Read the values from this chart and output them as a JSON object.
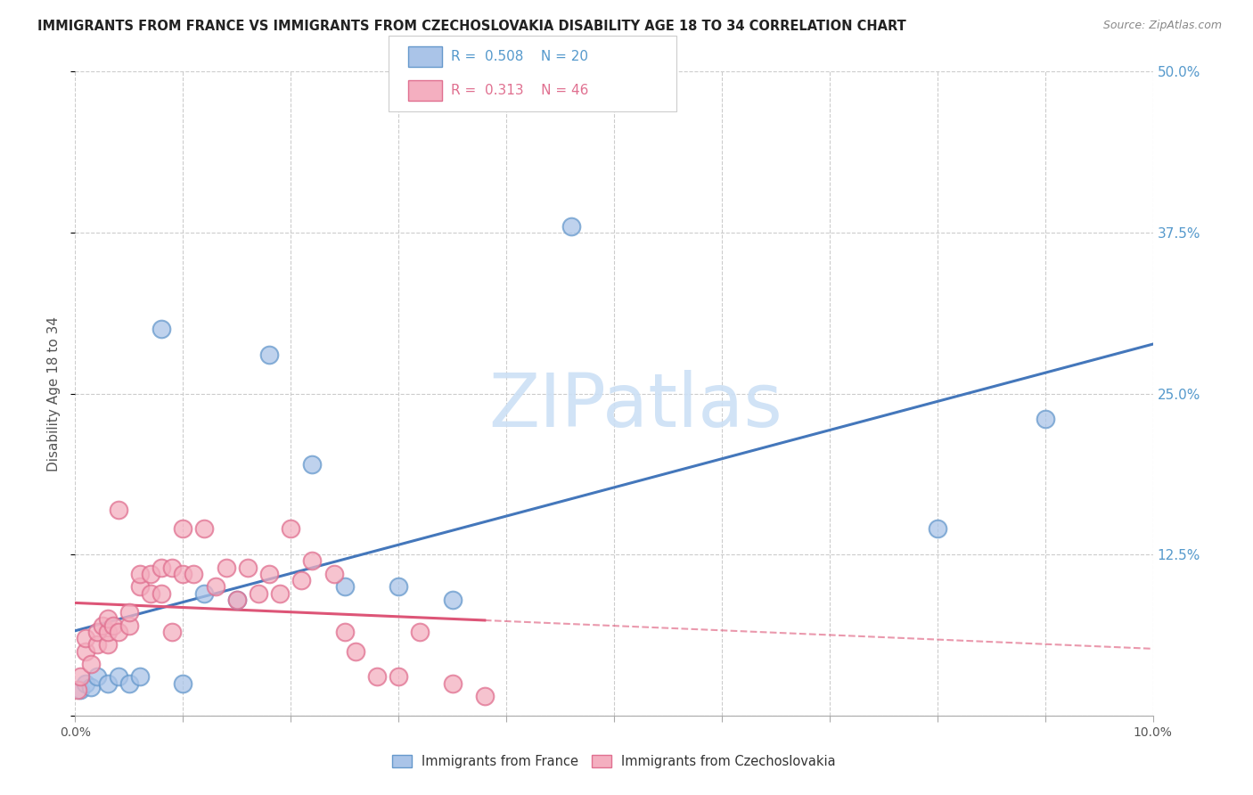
{
  "title": "IMMIGRANTS FROM FRANCE VS IMMIGRANTS FROM CZECHOSLOVAKIA DISABILITY AGE 18 TO 34 CORRELATION CHART",
  "source": "Source: ZipAtlas.com",
  "ylabel": "Disability Age 18 to 34",
  "xlim": [
    0.0,
    0.1
  ],
  "ylim": [
    0.0,
    0.5
  ],
  "yticks": [
    0.0,
    0.125,
    0.25,
    0.375,
    0.5
  ],
  "yticklabels": [
    "",
    "12.5%",
    "25.0%",
    "37.5%",
    "50.0%"
  ],
  "xticks": [
    0.0,
    0.01,
    0.02,
    0.03,
    0.04,
    0.05,
    0.06,
    0.07,
    0.08,
    0.09,
    0.1
  ],
  "xticklabels": [
    "0.0%",
    "",
    "",
    "",
    "",
    "",
    "",
    "",
    "",
    "",
    "10.0%"
  ],
  "R_france": 0.508,
  "N_france": 20,
  "R_czech": 0.313,
  "N_czech": 46,
  "color_france": "#aac4e8",
  "color_czech": "#f4afc0",
  "edge_france": "#6699cc",
  "edge_czech": "#e07090",
  "line_france": "#4477bb",
  "line_czech": "#dd5577",
  "watermark_color": "#cce0f5",
  "france_x": [
    0.0005,
    0.001,
    0.0015,
    0.002,
    0.003,
    0.004,
    0.005,
    0.006,
    0.008,
    0.01,
    0.012,
    0.015,
    0.018,
    0.022,
    0.025,
    0.03,
    0.035,
    0.046,
    0.08,
    0.09
  ],
  "france_y": [
    0.02,
    0.025,
    0.022,
    0.03,
    0.025,
    0.03,
    0.025,
    0.03,
    0.3,
    0.025,
    0.095,
    0.09,
    0.28,
    0.195,
    0.1,
    0.1,
    0.09,
    0.38,
    0.145,
    0.23
  ],
  "czech_x": [
    0.0002,
    0.0005,
    0.001,
    0.001,
    0.0015,
    0.002,
    0.002,
    0.0025,
    0.003,
    0.003,
    0.003,
    0.0035,
    0.004,
    0.004,
    0.005,
    0.005,
    0.006,
    0.006,
    0.007,
    0.007,
    0.008,
    0.008,
    0.009,
    0.009,
    0.01,
    0.01,
    0.011,
    0.012,
    0.013,
    0.014,
    0.015,
    0.016,
    0.017,
    0.018,
    0.019,
    0.02,
    0.021,
    0.022,
    0.024,
    0.025,
    0.026,
    0.028,
    0.03,
    0.032,
    0.035,
    0.038
  ],
  "czech_y": [
    0.02,
    0.03,
    0.05,
    0.06,
    0.04,
    0.055,
    0.065,
    0.07,
    0.055,
    0.065,
    0.075,
    0.07,
    0.065,
    0.16,
    0.07,
    0.08,
    0.1,
    0.11,
    0.095,
    0.11,
    0.095,
    0.115,
    0.065,
    0.115,
    0.145,
    0.11,
    0.11,
    0.145,
    0.1,
    0.115,
    0.09,
    0.115,
    0.095,
    0.11,
    0.095,
    0.145,
    0.105,
    0.12,
    0.11,
    0.065,
    0.05,
    0.03,
    0.03,
    0.065,
    0.025,
    0.015
  ]
}
